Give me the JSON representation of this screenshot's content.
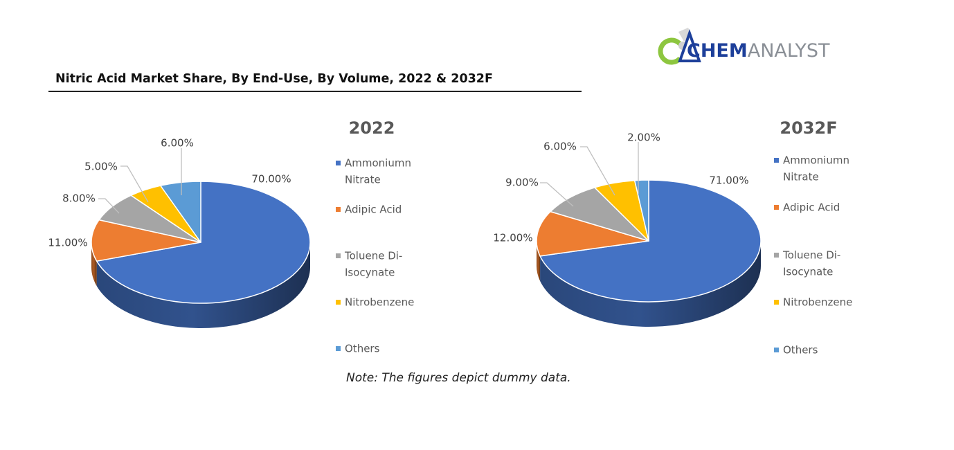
{
  "header": {
    "title": "Nitric Acid Market Share, By End-Use, By Volume, 2022 & 2032F",
    "logo_text_a": "CHEM",
    "logo_text_b": "ANALYST"
  },
  "note": "Note: The figures depict dummy data.",
  "colors": {
    "ammonium_nitrate": "#4472c4",
    "adipic_acid": "#ed7d31",
    "toluene": "#a5a5a5",
    "nitrobenzene": "#ffc000",
    "others": "#5b9bd5",
    "logo_green": "#8dc63f",
    "logo_blue": "#1d3f9a"
  },
  "chart_data": [
    {
      "type": "pie",
      "title": "2022",
      "legend": [
        "Ammoniumn Nitrate",
        "Adipic Acid",
        "Toluene Di-Isocynate",
        "Nitrobenzene",
        "Others"
      ],
      "legend_lines": [
        [
          "Ammoniumn",
          "Nitrate"
        ],
        [
          "Adipic Acid"
        ],
        [
          "Toluene Di-",
          "Isocynate"
        ],
        [
          "Nitrobenzene"
        ],
        [
          "Others"
        ]
      ],
      "values": [
        70,
        11,
        8,
        5,
        6
      ],
      "labels": [
        "70.00%",
        "11.00%",
        "8.00%",
        "5.00%",
        "6.00%"
      ],
      "legend_position": "right",
      "style": "3d"
    },
    {
      "type": "pie",
      "title": "2032F",
      "legend": [
        "Ammoniumn Nitrate",
        "Adipic Acid",
        "Toluene Di-Isocynate",
        "Nitrobenzene",
        "Others"
      ],
      "legend_lines": [
        [
          "Ammoniumn",
          "Nitrate"
        ],
        [
          "Adipic Acid"
        ],
        [
          "Toluene Di-",
          "Isocynate"
        ],
        [
          "Nitrobenzene"
        ],
        [
          "Others"
        ]
      ],
      "values": [
        71,
        12,
        9,
        6,
        2
      ],
      "labels": [
        "71.00%",
        "12.00%",
        "9.00%",
        "6.00%",
        "2.00%"
      ],
      "legend_position": "right",
      "style": "3d"
    }
  ]
}
